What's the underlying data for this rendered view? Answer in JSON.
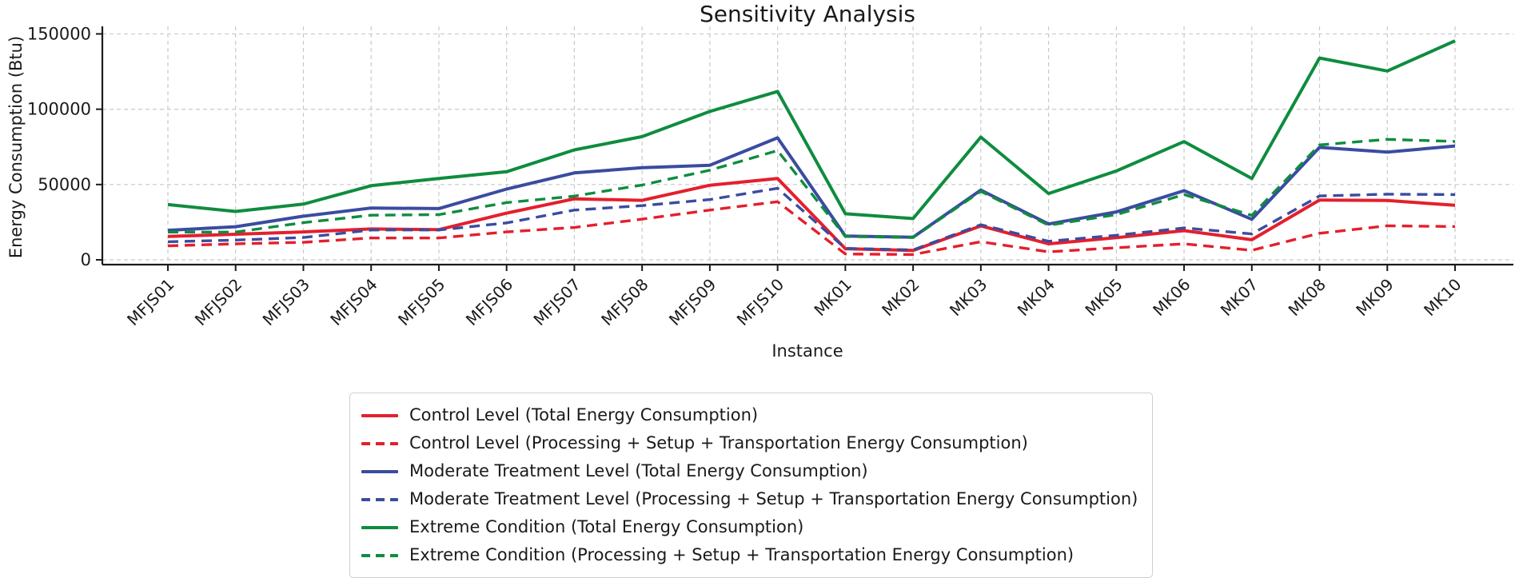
{
  "title": "Sensitivity Analysis",
  "colors": {
    "control": "#e41f2d",
    "moderate": "#3a4ca0",
    "extreme": "#0f8c3f",
    "grid": "#c9c9c9",
    "axis": "#1a1a1a",
    "text": "#1a1a1a",
    "legend_border": "#cfcfcf"
  },
  "chart_data": {
    "type": "line",
    "title": "Sensitivity Analysis",
    "xlabel": "Instance",
    "ylabel": "Energy Consumption (Btu)",
    "grid": true,
    "legend_position": "below",
    "ylim": [
      0,
      155000
    ],
    "yticks": [
      0,
      50000,
      100000,
      150000
    ],
    "ytick_labels": [
      "0",
      "50000",
      "100000",
      "150000"
    ],
    "categories": [
      "MFJS01",
      "MFJS02",
      "MFJS03",
      "MFJS04",
      "MFJS05",
      "MFJS06",
      "MFJS07",
      "MFJS08",
      "MFJS09",
      "MFJS10",
      "MK01",
      "MK02",
      "MK03",
      "MK04",
      "MK05",
      "MK06",
      "MK07",
      "MK08",
      "MK09",
      "MK10"
    ],
    "series": [
      {
        "name": "Control Level (Total Energy Consumption)",
        "color": "control",
        "style": "solid",
        "values": [
          15500,
          17000,
          18500,
          20500,
          20000,
          31000,
          40500,
          39500,
          49500,
          54000,
          7400,
          6200,
          22500,
          10600,
          14700,
          19400,
          13300,
          39700,
          39400,
          36200
        ]
      },
      {
        "name": "Control Level (Processing + Setup + Transportation Energy Consumption)",
        "color": "control",
        "style": "dashed",
        "values": [
          9300,
          10600,
          11600,
          14500,
          14500,
          18500,
          21500,
          27000,
          33000,
          38600,
          3900,
          3500,
          12000,
          5300,
          8000,
          10600,
          6300,
          17600,
          22600,
          22100
        ]
      },
      {
        "name": "Moderate Treatment Level (Total Energy Consumption)",
        "color": "moderate",
        "style": "solid",
        "values": [
          19600,
          22000,
          29000,
          34400,
          34000,
          47000,
          57700,
          61200,
          62800,
          81000,
          15800,
          15000,
          46300,
          23800,
          31800,
          45900,
          26900,
          74700,
          71500,
          75600
        ]
      },
      {
        "name": "Moderate Treatment Level (Processing + Setup + Transportation Energy Consumption)",
        "color": "moderate",
        "style": "dashed",
        "values": [
          12000,
          13100,
          14800,
          19800,
          19800,
          24500,
          33000,
          36000,
          40000,
          47500,
          7600,
          6600,
          23300,
          12300,
          16300,
          21200,
          17200,
          42400,
          43600,
          43300
        ]
      },
      {
        "name": "Extreme Condition (Total Energy Consumption)",
        "color": "extreme",
        "style": "solid",
        "values": [
          36700,
          32100,
          37000,
          49200,
          54000,
          58500,
          73000,
          81800,
          98500,
          111800,
          30600,
          27400,
          81500,
          44000,
          59000,
          78500,
          54000,
          134000,
          125400,
          145400
        ]
      },
      {
        "name": "Extreme Condition (Processing + Setup + Transportation Energy Consumption)",
        "color": "extreme",
        "style": "dashed",
        "values": [
          18400,
          18400,
          24700,
          29600,
          30000,
          38000,
          42300,
          49700,
          59500,
          72500,
          15500,
          14800,
          45500,
          23000,
          30000,
          43300,
          29500,
          76300,
          80000,
          78600
        ]
      }
    ]
  }
}
